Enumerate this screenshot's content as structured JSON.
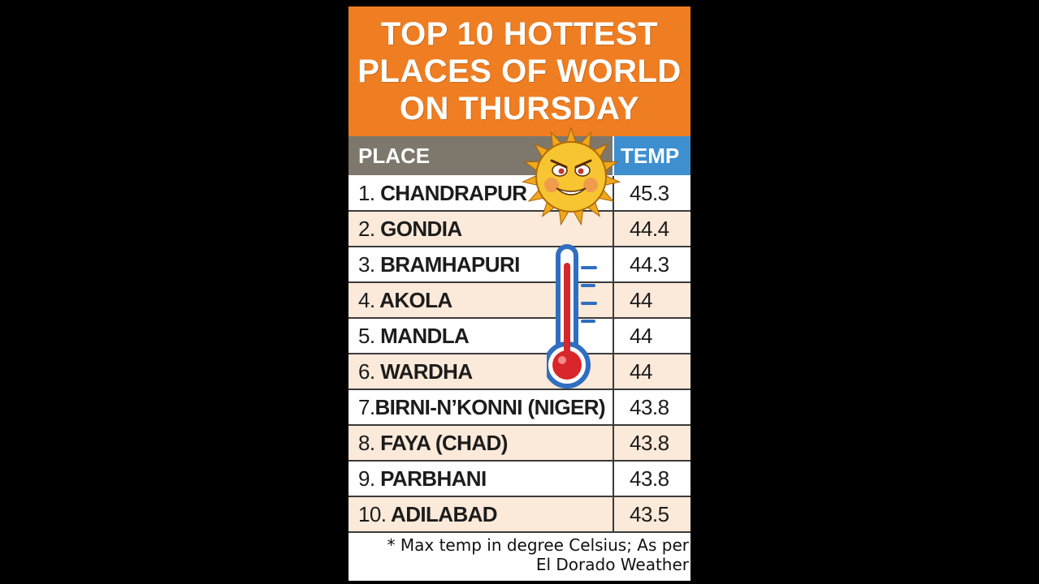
{
  "title_lines": [
    "TOP 10 HOTTEST",
    "PLACES OF WORLD",
    "ON THURSDAY"
  ],
  "headers": {
    "place": "PLACE",
    "temp": "TEMP"
  },
  "rows": [
    {
      "rank": "1.",
      "place": "CHANDRAPUR",
      "temp": "45.3"
    },
    {
      "rank": "2.",
      "place": "GONDIA",
      "temp": "44.4"
    },
    {
      "rank": "3.",
      "place": "BRAMHAPURI",
      "temp": "44.3"
    },
    {
      "rank": "4.",
      "place": "AKOLA",
      "temp": "44"
    },
    {
      "rank": "5.",
      "place": "MANDLA",
      "temp": "44"
    },
    {
      "rank": "6.",
      "place": "WARDHA",
      "temp": "44"
    },
    {
      "rank": "7.",
      "place": "BIRNI-N’KONNI (NIGER)",
      "temp": "43.8"
    },
    {
      "rank": "8.",
      "place": "FAYA (CHAD)",
      "temp": "43.8"
    },
    {
      "rank": "9.",
      "place": "PARBHANI",
      "temp": "43.8"
    },
    {
      "rank": "10.",
      "place": "ADILABAD",
      "temp": "43.5"
    }
  ],
  "footnote_lines": [
    "* Max temp in degree Celsius; As per",
    "El Dorado Weather"
  ],
  "icons": {
    "sun": "angry-sun-icon",
    "thermometer": "thermometer-icon"
  },
  "colors": {
    "title_bg": "#ef7d22",
    "place_header_bg": "#7d786b",
    "temp_header_bg": "#3e8fd0",
    "alt_row_bg": "#fbe9d9"
  },
  "chart_data": {
    "type": "table",
    "title": "TOP 10 HOTTEST PLACES OF WORLD ON THURSDAY",
    "columns": [
      "PLACE",
      "TEMP"
    ],
    "categories": [
      "CHANDRAPUR",
      "GONDIA",
      "BRAMHAPURI",
      "AKOLA",
      "MANDLA",
      "WARDHA",
      "BIRNI-N’KONNI (NIGER)",
      "FAYA (CHAD)",
      "PARBHANI",
      "ADILABAD"
    ],
    "values": [
      45.3,
      44.4,
      44.3,
      44,
      44,
      44,
      43.8,
      43.8,
      43.8,
      43.5
    ]
  }
}
